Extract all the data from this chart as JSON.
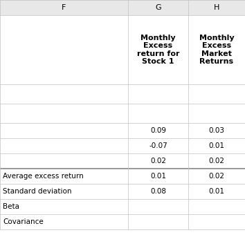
{
  "col_headers": [
    "F",
    "G",
    "H"
  ],
  "col_header_bg": "#e8e8e8",
  "header_row": [
    "",
    "Monthly\nExcess\nreturn for\nStock 1",
    "Monthly\nExcess\nMarket\nReturns"
  ],
  "data_rows": [
    [
      "",
      "",
      ""
    ],
    [
      "",
      "",
      ""
    ],
    [
      "",
      "0.09",
      "0.03"
    ],
    [
      "",
      "-0.07",
      "0.01"
    ],
    [
      "",
      "0.02",
      "0.02"
    ],
    [
      "Average excess return",
      "0.01",
      "0.02"
    ],
    [
      "Standard deviation",
      "0.08",
      "0.01"
    ],
    [
      "Beta",
      "",
      ""
    ],
    [
      "Covariance",
      "",
      ""
    ]
  ],
  "bg_color": "#ffffff",
  "grid_color": "#c0c0c0",
  "thick_line_color": "#888888",
  "text_color": "#000000",
  "figw": 3.54,
  "figh": 3.56,
  "dpi": 100
}
